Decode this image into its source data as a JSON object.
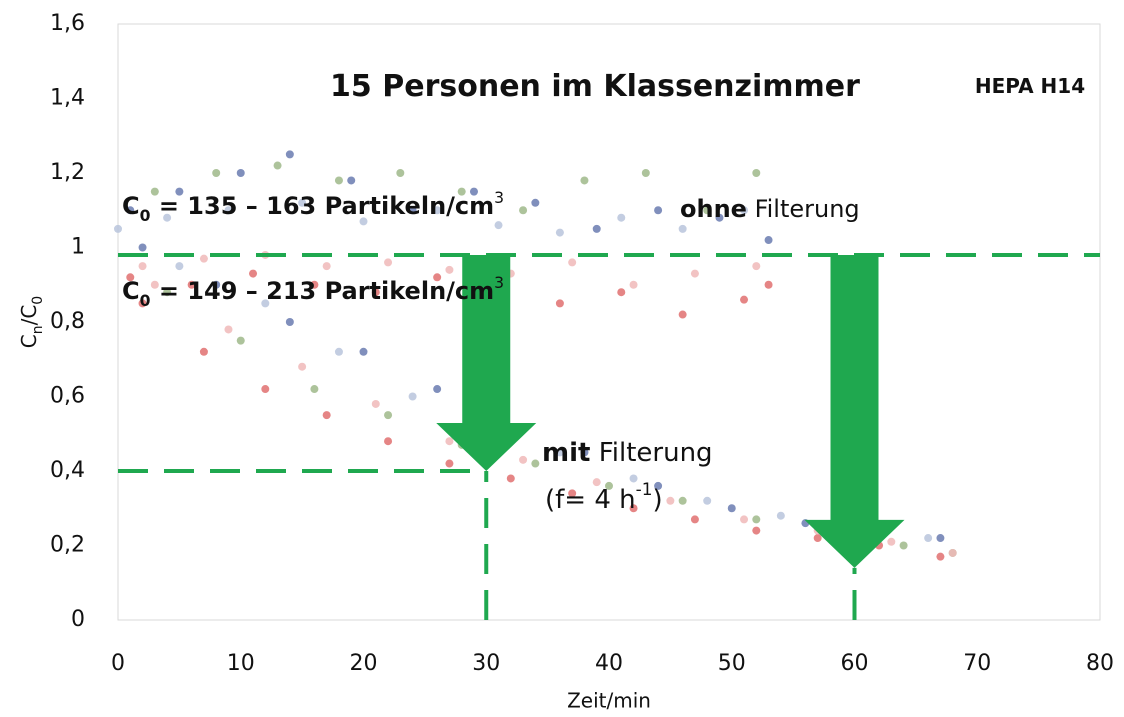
{
  "chart_data": {
    "type": "scatter",
    "xlabel": "Zeit/min",
    "ylabel": [
      {
        "text": "C"
      },
      {
        "text": "n",
        "style": "sub"
      },
      {
        "text": "/C"
      },
      {
        "text": "0",
        "style": "sub"
      }
    ],
    "xlim": [
      0,
      80
    ],
    "xticks": [
      0,
      10,
      20,
      30,
      40,
      50,
      60,
      70,
      80
    ],
    "ylim": [
      0,
      1.6
    ],
    "yticks": [
      0,
      {
        "value": 0.2,
        "label": "0,2",
        "color": "#1fa84f"
      },
      {
        "value": 0.4,
        "label": "0,4",
        "color": "#1fa84f"
      },
      {
        "value": 0.6,
        "label": "0,6"
      },
      {
        "value": 0.8,
        "label": "0,8"
      },
      1,
      {
        "value": 1.2,
        "label": "1,2"
      },
      {
        "value": 1.4,
        "label": "1,4"
      },
      {
        "value": 1.6,
        "label": "1,6"
      }
    ],
    "grid": false,
    "annotations": [
      {
        "parts": [
          {
            "text": "15 Personen im Klassenzimmer",
            "style": "bold"
          }
        ]
      },
      {
        "parts": [
          {
            "text": "HEPA H14",
            "style": "bold"
          }
        ]
      },
      {
        "parts": [
          {
            "text": "C",
            "style": "bold"
          },
          {
            "text": "0",
            "style": "sub"
          },
          {
            "text": " = 135 – 163 Partikeln/cm",
            "style": "bold"
          },
          {
            "text": "3",
            "style": "sup"
          }
        ]
      },
      {
        "parts": [
          {
            "text": "ohne",
            "style": "bold"
          },
          {
            "text": " Filterung"
          }
        ]
      },
      {
        "parts": [
          {
            "text": "C",
            "style": "bold"
          },
          {
            "text": "0",
            "style": "sub"
          },
          {
            "text": " = 149 – 213 Partikeln/cm",
            "style": "bold"
          },
          {
            "text": "3",
            "style": "sup"
          }
        ]
      },
      {
        "parts": [
          {
            "text": "mit",
            "style": "bold"
          },
          {
            "text": " Filterung"
          }
        ]
      },
      {
        "parts": [
          {
            "text": "(f= 4 h"
          },
          {
            "text": "-1",
            "style": "sup"
          },
          {
            "text": ")"
          }
        ]
      }
    ],
    "reference_color": "#1fa84f",
    "hlines": [
      {
        "y": 0.98,
        "x0": 0,
        "x1": 80
      },
      {
        "y": 0.4,
        "x0": 0,
        "x1": 30
      }
    ],
    "vlines": [
      {
        "x": 30,
        "y0": 0,
        "y1": 0.4
      },
      {
        "x": 60,
        "y0": 0,
        "y1": 0.14
      }
    ],
    "arrows": [
      {
        "x": 30,
        "from": 0.98,
        "to": 0.4
      },
      {
        "x": 60,
        "from": 0.98,
        "to": 0.14
      }
    ],
    "series": [
      {
        "color": "#6a7bb0",
        "x": [
          1,
          5,
          10,
          14,
          19,
          24,
          29,
          34,
          39,
          44,
          49,
          53,
          2,
          8,
          14,
          20,
          26,
          32,
          38,
          44,
          50,
          56,
          62,
          67
        ],
        "values": [
          1.1,
          1.15,
          1.2,
          1.25,
          1.18,
          1.1,
          1.15,
          1.12,
          1.05,
          1.1,
          1.08,
          1.02,
          1.0,
          0.9,
          0.8,
          0.72,
          0.62,
          0.5,
          0.45,
          0.36,
          0.3,
          0.26,
          0.24,
          0.22
        ]
      },
      {
        "color": "#9fb88a",
        "x": [
          3,
          8,
          13,
          18,
          23,
          28,
          33,
          38,
          43,
          48,
          52,
          4,
          10,
          16,
          22,
          28,
          34,
          40,
          46,
          52,
          58,
          64,
          68
        ],
        "values": [
          1.15,
          1.2,
          1.22,
          1.18,
          1.2,
          1.15,
          1.1,
          1.18,
          1.2,
          1.1,
          1.2,
          0.88,
          0.75,
          0.62,
          0.55,
          0.47,
          0.42,
          0.36,
          0.32,
          0.27,
          0.24,
          0.2,
          0.18
        ]
      },
      {
        "color": "#b8c4dc",
        "x": [
          0,
          4,
          9,
          15,
          20,
          26,
          31,
          36,
          41,
          46,
          51,
          5,
          12,
          18,
          24,
          30,
          36,
          42,
          48,
          54,
          60,
          66
        ],
        "values": [
          1.05,
          1.08,
          1.1,
          1.12,
          1.07,
          1.1,
          1.06,
          1.04,
          1.08,
          1.05,
          1.1,
          0.95,
          0.85,
          0.72,
          0.6,
          0.5,
          0.45,
          0.38,
          0.32,
          0.28,
          0.25,
          0.22
        ]
      },
      {
        "color": "#e07070",
        "x": [
          1,
          6,
          11,
          16,
          21,
          26,
          31,
          36,
          41,
          46,
          51,
          53,
          2,
          7,
          12,
          17,
          22,
          27,
          32,
          37,
          42,
          47,
          52,
          57,
          62,
          67
        ],
        "values": [
          0.92,
          0.9,
          0.93,
          0.9,
          0.88,
          0.92,
          0.9,
          0.85,
          0.88,
          0.82,
          0.86,
          0.9,
          0.85,
          0.72,
          0.62,
          0.55,
          0.48,
          0.42,
          0.38,
          0.34,
          0.3,
          0.27,
          0.24,
          0.22,
          0.2,
          0.17
        ]
      },
      {
        "color": "#f0b8b8",
        "x": [
          2,
          7,
          12,
          17,
          22,
          27,
          32,
          37,
          42,
          47,
          52,
          3,
          9,
          15,
          21,
          27,
          33,
          39,
          45,
          51,
          57,
          63,
          68
        ],
        "values": [
          0.95,
          0.97,
          0.98,
          0.95,
          0.96,
          0.94,
          0.93,
          0.96,
          0.9,
          0.93,
          0.95,
          0.9,
          0.78,
          0.68,
          0.58,
          0.48,
          0.43,
          0.37,
          0.32,
          0.27,
          0.24,
          0.21,
          0.18
        ]
      }
    ]
  }
}
